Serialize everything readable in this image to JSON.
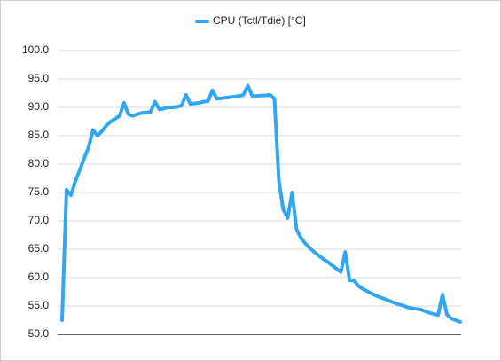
{
  "chart_data": {
    "type": "line",
    "series": [
      {
        "name": "CPU (Tctl/Tdie) [°C]",
        "color": "#33a6f0",
        "values": [
          52.5,
          75.5,
          74.5,
          77,
          79,
          81,
          83,
          86,
          85,
          85.8,
          86.8,
          87.5,
          88,
          88.5,
          90.8,
          88.8,
          88.5,
          88.8,
          89,
          89.1,
          89.2,
          91,
          89.6,
          89.8,
          90,
          90,
          90.1,
          90.3,
          92.2,
          90.6,
          90.7,
          90.8,
          91,
          91.1,
          93,
          91.5,
          91.6,
          91.7,
          91.8,
          91.9,
          92,
          92.2,
          93.8,
          92,
          92,
          92.1,
          92.1,
          92.2,
          91.5,
          77,
          72,
          70.5,
          75,
          68.5,
          67,
          66,
          65.2,
          64.5,
          63.9,
          63.3,
          62.8,
          62.2,
          61.6,
          61,
          64.5,
          59.5,
          59.5,
          58.5,
          58,
          57.6,
          57.2,
          56.8,
          56.5,
          56.2,
          55.9,
          55.6,
          55.3,
          55.1,
          54.8,
          54.6,
          54.5,
          54.4,
          54.1,
          53.8,
          53.6,
          53.4,
          57,
          53.5,
          52.8,
          52.5,
          52.2
        ]
      }
    ],
    "ylim": [
      50,
      100
    ],
    "yticks": [
      {
        "value": 50,
        "label": "50.0"
      },
      {
        "value": 55,
        "label": "55.0"
      },
      {
        "value": 60,
        "label": "60.0"
      },
      {
        "value": 65,
        "label": "65.0"
      },
      {
        "value": 70,
        "label": "70.0"
      },
      {
        "value": 75,
        "label": "75.0"
      },
      {
        "value": 80,
        "label": "80.0"
      },
      {
        "value": 85,
        "label": "85.0"
      },
      {
        "value": 90,
        "label": "90.0"
      },
      {
        "value": 95,
        "label": "95.0"
      },
      {
        "value": 100,
        "label": "100.0"
      }
    ],
    "grid": true,
    "legend": "top"
  }
}
